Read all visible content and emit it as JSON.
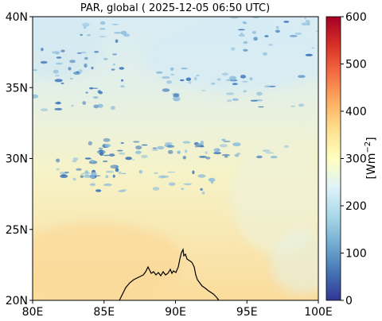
{
  "title": "PAR, global ( 2025-12-05 06:50 UTC)",
  "map": {
    "x_ticks": [
      "80E",
      "85E",
      "90E",
      "95E",
      "100E"
    ],
    "y_ticks": [
      "40N",
      "35N",
      "30N",
      "25N",
      "20N"
    ],
    "lon_range": [
      80,
      100
    ],
    "lat_range": [
      20,
      40
    ]
  },
  "colorbar": {
    "label": "[Wm",
    "label_sup": "−2",
    "label_end": "]",
    "ticks": [
      "600",
      "500",
      "400",
      "300",
      "200",
      "100",
      "0"
    ],
    "range": [
      0,
      600
    ],
    "colors": [
      "#313695",
      "#4575b4",
      "#74add1",
      "#abd9e9",
      "#e0f3f8",
      "#ffffbf",
      "#fee090",
      "#fdae61",
      "#f46d43",
      "#d73027",
      "#a50026"
    ]
  },
  "field_colors": {
    "north": "#d8ecf4",
    "mid": "#f6f3c8",
    "south": "#fbdc9c",
    "cloud_light": "#8fbedc",
    "cloud_dark": "#3f78b8",
    "coastline": "#000000"
  }
}
